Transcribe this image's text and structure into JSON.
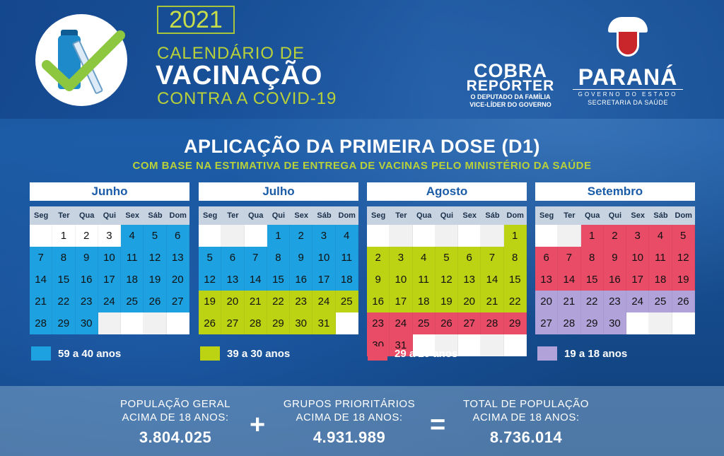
{
  "header": {
    "year": "2021",
    "title_line1": "CALENDÁRIO DE",
    "title_line2": "VACINAÇÃO",
    "title_line3": "CONTRA A COVID-19",
    "partner": {
      "line1": "COBRA",
      "line2": "REPÓRTER",
      "line3": "O DEPUTADO DA FAMÍLIA",
      "line4": "VICE-LÍDER DO GOVERNO"
    },
    "government": {
      "name": "PARANÁ",
      "sub": "GOVERNO DO ESTADO",
      "dept": "SECRETARIA DA SAÚDE"
    }
  },
  "heading": "APLICAÇÃO DA PRIMEIRA DOSE (D1)",
  "subheading": "COM BASE NA ESTIMATIVA DE ENTREGA DE VACINAS PELO MINISTÉRIO DA SAÚDE",
  "weekdays": [
    "Seg",
    "Ter",
    "Qua",
    "Qui",
    "Sex",
    "Sáb",
    "Dom"
  ],
  "colors": {
    "59-40": "#1da1e0",
    "39-30": "#bcd314",
    "29-20": "#e84c67",
    "19-18": "#b1a2d9"
  },
  "months": [
    {
      "name": "Junho",
      "weeks": [
        [
          null,
          {
            "d": "1",
            "g": "plain"
          },
          {
            "d": "2",
            "g": "plain"
          },
          {
            "d": "3",
            "g": "plain"
          },
          {
            "d": "4",
            "g": "c59"
          },
          {
            "d": "5",
            "g": "c59"
          },
          {
            "d": "6",
            "g": "c59"
          }
        ],
        [
          {
            "d": "7",
            "g": "c59"
          },
          {
            "d": "8",
            "g": "c59"
          },
          {
            "d": "9",
            "g": "c59"
          },
          {
            "d": "10",
            "g": "c59"
          },
          {
            "d": "11",
            "g": "c59"
          },
          {
            "d": "12",
            "g": "c59"
          },
          {
            "d": "13",
            "g": "c59"
          }
        ],
        [
          {
            "d": "14",
            "g": "c59"
          },
          {
            "d": "15",
            "g": "c59"
          },
          {
            "d": "16",
            "g": "c59"
          },
          {
            "d": "17",
            "g": "c59"
          },
          {
            "d": "18",
            "g": "c59"
          },
          {
            "d": "19",
            "g": "c59"
          },
          {
            "d": "20",
            "g": "c59"
          }
        ],
        [
          {
            "d": "21",
            "g": "c59"
          },
          {
            "d": "22",
            "g": "c59"
          },
          {
            "d": "23",
            "g": "c59"
          },
          {
            "d": "24",
            "g": "c59"
          },
          {
            "d": "25",
            "g": "c59"
          },
          {
            "d": "26",
            "g": "c59"
          },
          {
            "d": "27",
            "g": "c59"
          }
        ],
        [
          {
            "d": "28",
            "g": "c59"
          },
          {
            "d": "29",
            "g": "c59"
          },
          {
            "d": "30",
            "g": "c59"
          },
          null,
          null,
          null,
          null
        ]
      ]
    },
    {
      "name": "Julho",
      "weeks": [
        [
          null,
          null,
          null,
          {
            "d": "1",
            "g": "c59"
          },
          {
            "d": "2",
            "g": "c59"
          },
          {
            "d": "3",
            "g": "c59"
          },
          {
            "d": "4",
            "g": "c59"
          }
        ],
        [
          {
            "d": "5",
            "g": "c59"
          },
          {
            "d": "6",
            "g": "c59"
          },
          {
            "d": "7",
            "g": "c59"
          },
          {
            "d": "8",
            "g": "c59"
          },
          {
            "d": "9",
            "g": "c59"
          },
          {
            "d": "10",
            "g": "c59"
          },
          {
            "d": "11",
            "g": "c59"
          }
        ],
        [
          {
            "d": "12",
            "g": "c59"
          },
          {
            "d": "13",
            "g": "c59"
          },
          {
            "d": "14",
            "g": "c59"
          },
          {
            "d": "15",
            "g": "c59"
          },
          {
            "d": "16",
            "g": "c59"
          },
          {
            "d": "17",
            "g": "c59"
          },
          {
            "d": "18",
            "g": "c59"
          }
        ],
        [
          {
            "d": "19",
            "g": "c39"
          },
          {
            "d": "20",
            "g": "c39"
          },
          {
            "d": "21",
            "g": "c39"
          },
          {
            "d": "22",
            "g": "c39"
          },
          {
            "d": "23",
            "g": "c39"
          },
          {
            "d": "24",
            "g": "c39"
          },
          {
            "d": "25",
            "g": "c39"
          }
        ],
        [
          {
            "d": "26",
            "g": "c39"
          },
          {
            "d": "27",
            "g": "c39"
          },
          {
            "d": "28",
            "g": "c39"
          },
          {
            "d": "29",
            "g": "c39"
          },
          {
            "d": "30",
            "g": "c39"
          },
          {
            "d": "31",
            "g": "c39"
          },
          null
        ]
      ]
    },
    {
      "name": "Agosto",
      "weeks": [
        [
          null,
          null,
          null,
          null,
          null,
          null,
          {
            "d": "1",
            "g": "c39"
          }
        ],
        [
          {
            "d": "2",
            "g": "c39"
          },
          {
            "d": "3",
            "g": "c39"
          },
          {
            "d": "4",
            "g": "c39"
          },
          {
            "d": "5",
            "g": "c39"
          },
          {
            "d": "6",
            "g": "c39"
          },
          {
            "d": "7",
            "g": "c39"
          },
          {
            "d": "8",
            "g": "c39"
          }
        ],
        [
          {
            "d": "9",
            "g": "c39"
          },
          {
            "d": "10",
            "g": "c39"
          },
          {
            "d": "11",
            "g": "c39"
          },
          {
            "d": "12",
            "g": "c39"
          },
          {
            "d": "13",
            "g": "c39"
          },
          {
            "d": "14",
            "g": "c39"
          },
          {
            "d": "15",
            "g": "c39"
          }
        ],
        [
          {
            "d": "16",
            "g": "c39"
          },
          {
            "d": "17",
            "g": "c39"
          },
          {
            "d": "18",
            "g": "c39"
          },
          {
            "d": "19",
            "g": "c39"
          },
          {
            "d": "20",
            "g": "c39"
          },
          {
            "d": "21",
            "g": "c39"
          },
          {
            "d": "22",
            "g": "c39"
          }
        ],
        [
          {
            "d": "23",
            "g": "c29"
          },
          {
            "d": "24",
            "g": "c29"
          },
          {
            "d": "25",
            "g": "c29"
          },
          {
            "d": "26",
            "g": "c29"
          },
          {
            "d": "27",
            "g": "c29"
          },
          {
            "d": "28",
            "g": "c29"
          },
          {
            "d": "29",
            "g": "c29"
          }
        ],
        [
          {
            "d": "30",
            "g": "c29"
          },
          {
            "d": "31",
            "g": "c29"
          },
          null,
          null,
          null,
          null,
          null
        ]
      ]
    },
    {
      "name": "Setembro",
      "weeks": [
        [
          null,
          null,
          {
            "d": "1",
            "g": "c29"
          },
          {
            "d": "2",
            "g": "c29"
          },
          {
            "d": "3",
            "g": "c29"
          },
          {
            "d": "4",
            "g": "c29"
          },
          {
            "d": "5",
            "g": "c29"
          }
        ],
        [
          {
            "d": "6",
            "g": "c29"
          },
          {
            "d": "7",
            "g": "c29"
          },
          {
            "d": "8",
            "g": "c29"
          },
          {
            "d": "9",
            "g": "c29"
          },
          {
            "d": "10",
            "g": "c29"
          },
          {
            "d": "11",
            "g": "c29"
          },
          {
            "d": "12",
            "g": "c29"
          }
        ],
        [
          {
            "d": "13",
            "g": "c29"
          },
          {
            "d": "14",
            "g": "c29"
          },
          {
            "d": "15",
            "g": "c29"
          },
          {
            "d": "16",
            "g": "c29"
          },
          {
            "d": "17",
            "g": "c29"
          },
          {
            "d": "18",
            "g": "c29"
          },
          {
            "d": "19",
            "g": "c29"
          }
        ],
        [
          {
            "d": "20",
            "g": "c19"
          },
          {
            "d": "21",
            "g": "c19"
          },
          {
            "d": "22",
            "g": "c19"
          },
          {
            "d": "23",
            "g": "c19"
          },
          {
            "d": "24",
            "g": "c19"
          },
          {
            "d": "25",
            "g": "c19"
          },
          {
            "d": "26",
            "g": "c19"
          }
        ],
        [
          {
            "d": "27",
            "g": "c19"
          },
          {
            "d": "28",
            "g": "c19"
          },
          {
            "d": "29",
            "g": "c19"
          },
          {
            "d": "30",
            "g": "c19"
          },
          null,
          null,
          null
        ]
      ]
    }
  ],
  "legend": [
    {
      "label": "59 a 40 anos",
      "color": "#1da1e0"
    },
    {
      "label": "39 a 30 anos",
      "color": "#bcd314"
    },
    {
      "label": "29 a 20 anos",
      "color": "#e84c67"
    },
    {
      "label": "19 a 18 anos",
      "color": "#b1a2d9"
    }
  ],
  "stats": {
    "general": {
      "line1": "POPULAÇÃO GERAL",
      "line2": "ACIMA DE 18 ANOS:",
      "value": "3.804.025"
    },
    "priority": {
      "line1": "GRUPOS PRIORITÁRIOS",
      "line2": "ACIMA DE 18 ANOS:",
      "value": "4.931.989"
    },
    "total": {
      "line1": "TOTAL DE POPULAÇÃO",
      "line2": "ACIMA DE 18 ANOS:",
      "value": "8.736.014"
    },
    "plus": "+",
    "equals": "="
  }
}
